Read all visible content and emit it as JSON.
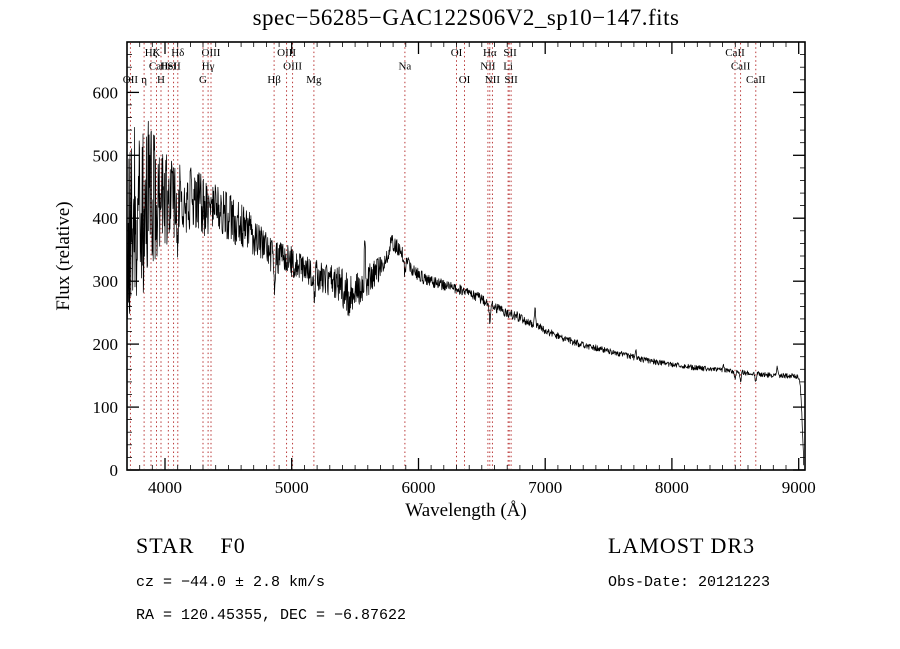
{
  "chart_data": {
    "type": "line",
    "title": "spec−56285−GAC122S06V2_sp10−147.fits",
    "xlabel": "Wavelength (Å)",
    "ylabel": "Flux (relative)",
    "xlim": [
      3700,
      9050
    ],
    "ylim": [
      0,
      680
    ],
    "x_ticks": [
      4000,
      5000,
      6000,
      7000,
      8000,
      9000
    ],
    "y_ticks": [
      0,
      100,
      200,
      300,
      400,
      500,
      600
    ],
    "x_minor_step": 100,
    "y_minor_step": 20,
    "grid": false,
    "legend": false,
    "line_color": "#000000",
    "marker_color": "#b22222",
    "noise_seed": 20121223,
    "marker_wavelengths": [
      3727,
      3835,
      3889,
      3933,
      3968,
      4026,
      4068,
      4101,
      4300,
      4340,
      4363,
      4861,
      4959,
      5007,
      5175,
      5893,
      6300,
      6363,
      6548,
      6563,
      6583,
      6707,
      6716,
      6731,
      8498,
      8542,
      8662
    ],
    "line_labels": [
      {
        "label": "Hζ",
        "wavelength": 3889,
        "row": 0
      },
      {
        "label": "K",
        "wavelength": 3933,
        "row": 0
      },
      {
        "label": "Hδ",
        "wavelength": 4101,
        "row": 0
      },
      {
        "label": "OIII",
        "wavelength": 4363,
        "row": 0
      },
      {
        "label": "OIII",
        "wavelength": 4959,
        "row": 0
      },
      {
        "label": "OI",
        "wavelength": 6300,
        "row": 0
      },
      {
        "label": "Hα",
        "wavelength": 6563,
        "row": 0
      },
      {
        "label": "SII",
        "wavelength": 6723,
        "row": 0
      },
      {
        "label": "CaII",
        "wavelength": 8498,
        "row": 0
      },
      {
        "label": "CaII",
        "wavelength": 3950,
        "row": 1
      },
      {
        "label": "HeI",
        "wavelength": 4026,
        "row": 1
      },
      {
        "label": "SII",
        "wavelength": 4072,
        "row": 1
      },
      {
        "label": "Hγ",
        "wavelength": 4340,
        "row": 1
      },
      {
        "label": "OIII",
        "wavelength": 5007,
        "row": 1
      },
      {
        "label": "Na",
        "wavelength": 5893,
        "row": 1
      },
      {
        "label": "NII",
        "wavelength": 6548,
        "row": 1
      },
      {
        "label": "Li",
        "wavelength": 6707,
        "row": 1
      },
      {
        "label": "CaII",
        "wavelength": 8542,
        "row": 1
      },
      {
        "label": "OII",
        "wavelength": 3727,
        "row": 2
      },
      {
        "label": "η",
        "wavelength": 3835,
        "row": 2
      },
      {
        "label": "H",
        "wavelength": 3968,
        "row": 2
      },
      {
        "label": "G",
        "wavelength": 4300,
        "row": 2
      },
      {
        "label": "Hβ",
        "wavelength": 4861,
        "row": 2
      },
      {
        "label": "Mg",
        "wavelength": 5175,
        "row": 2
      },
      {
        "label": "OI",
        "wavelength": 6363,
        "row": 2
      },
      {
        "label": "NII",
        "wavelength": 6583,
        "row": 2
      },
      {
        "label": "SII",
        "wavelength": 6731,
        "row": 2
      },
      {
        "label": "CaII",
        "wavelength": 8662,
        "row": 2
      }
    ],
    "spectrum_anchors": [
      [
        3700,
        340
      ],
      [
        3760,
        410
      ],
      [
        3830,
        420
      ],
      [
        3900,
        430
      ],
      [
        3960,
        425
      ],
      [
        4030,
        430
      ],
      [
        4120,
        432
      ],
      [
        4220,
        428
      ],
      [
        4320,
        418
      ],
      [
        4400,
        420
      ],
      [
        4500,
        402
      ],
      [
        4600,
        388
      ],
      [
        4700,
        372
      ],
      [
        4800,
        352
      ],
      [
        4870,
        335
      ],
      [
        4950,
        336
      ],
      [
        5060,
        326
      ],
      [
        5170,
        312
      ],
      [
        5260,
        306
      ],
      [
        5360,
        296
      ],
      [
        5450,
        278
      ],
      [
        5560,
        296
      ],
      [
        5660,
        312
      ],
      [
        5730,
        330
      ],
      [
        5790,
        362
      ],
      [
        5840,
        352
      ],
      [
        5900,
        336
      ],
      [
        5960,
        316
      ],
      [
        6060,
        302
      ],
      [
        6160,
        296
      ],
      [
        6260,
        291
      ],
      [
        6360,
        284
      ],
      [
        6460,
        276
      ],
      [
        6560,
        264
      ],
      [
        6660,
        252
      ],
      [
        6760,
        246
      ],
      [
        6860,
        236
      ],
      [
        6960,
        226
      ],
      [
        7060,
        216
      ],
      [
        7160,
        208
      ],
      [
        7260,
        201
      ],
      [
        7360,
        196
      ],
      [
        7460,
        191
      ],
      [
        7560,
        186
      ],
      [
        7660,
        181
      ],
      [
        7760,
        176
      ],
      [
        7860,
        172
      ],
      [
        7960,
        169
      ],
      [
        8060,
        166
      ],
      [
        8160,
        163
      ],
      [
        8260,
        161
      ],
      [
        8360,
        159
      ],
      [
        8460,
        157
      ],
      [
        8560,
        155
      ],
      [
        8660,
        153
      ],
      [
        8760,
        151
      ],
      [
        8860,
        150
      ],
      [
        8960,
        149
      ],
      [
        9000,
        147
      ],
      [
        9012,
        136
      ],
      [
        9025,
        90
      ],
      [
        9040,
        10
      ]
    ],
    "noise_profile": [
      [
        3700,
        140
      ],
      [
        3820,
        140
      ],
      [
        3900,
        125
      ],
      [
        3980,
        90
      ],
      [
        4050,
        70
      ],
      [
        4150,
        55
      ],
      [
        4300,
        48
      ],
      [
        4500,
        38
      ],
      [
        4700,
        32
      ],
      [
        4900,
        26
      ],
      [
        5100,
        24
      ],
      [
        5300,
        26
      ],
      [
        5450,
        34
      ],
      [
        5600,
        26
      ],
      [
        5750,
        14
      ],
      [
        5900,
        11
      ],
      [
        6100,
        9
      ],
      [
        6400,
        8
      ],
      [
        6700,
        8
      ],
      [
        7000,
        6
      ],
      [
        7400,
        5
      ],
      [
        7800,
        4.5
      ],
      [
        8200,
        4
      ],
      [
        8600,
        4
      ],
      [
        9000,
        4
      ],
      [
        9050,
        3
      ]
    ],
    "emission_spikes": [
      [
        5577,
        75,
        4
      ],
      [
        6920,
        28,
        4
      ],
      [
        7715,
        15,
        4
      ],
      [
        8405,
        10,
        4
      ],
      [
        8830,
        12,
        4
      ]
    ],
    "absorption_dips": [
      [
        3933,
        90,
        5
      ],
      [
        3968,
        80,
        5
      ],
      [
        4101,
        50,
        5
      ],
      [
        4340,
        40,
        5
      ],
      [
        4861,
        45,
        5
      ],
      [
        5175,
        25,
        8
      ],
      [
        5893,
        25,
        6
      ],
      [
        6563,
        30,
        5
      ],
      [
        8498,
        10,
        5
      ],
      [
        8542,
        14,
        5
      ],
      [
        8662,
        14,
        5
      ]
    ]
  },
  "annotations": {
    "class_label": "STAR    F0",
    "survey": "LAMOST DR3",
    "cz_label": "cz = −44.0 ± 2.8 km/s",
    "radec_label": "RA = 120.45355, DEC = −6.87622",
    "obs_date_label": "Obs-Date: 20121223"
  }
}
